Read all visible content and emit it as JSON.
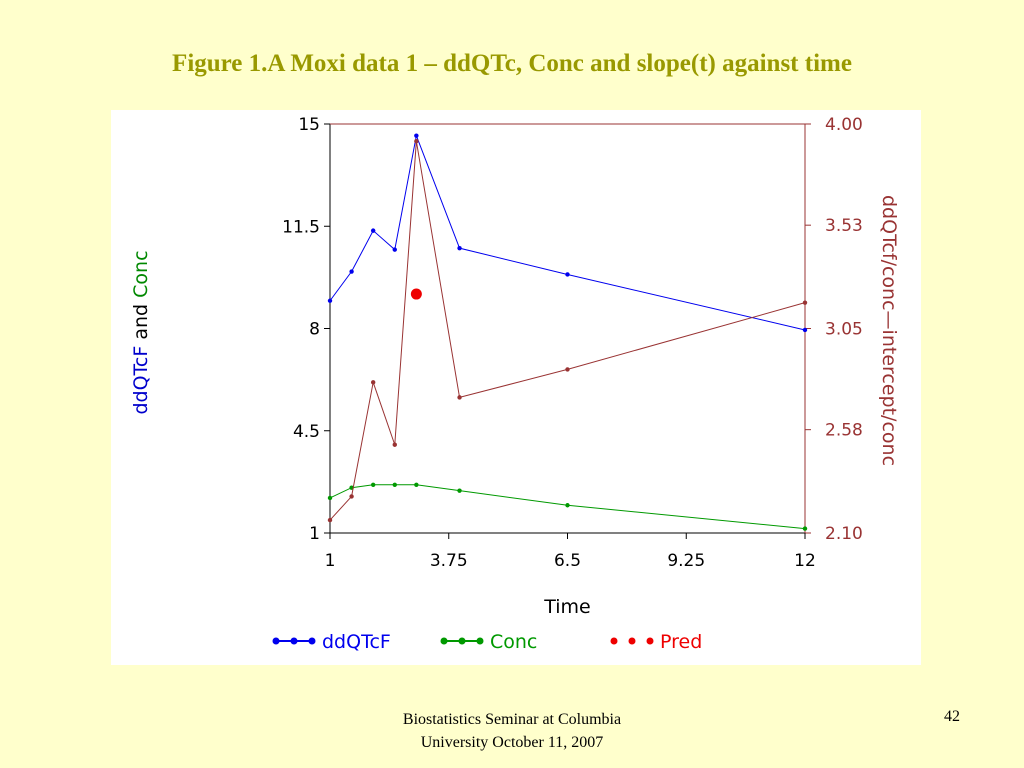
{
  "slide": {
    "title": "Figure 1.A Moxi data 1 – ddQTc, Conc and slope(t) against time",
    "footer_line1": "Biostatistics Seminar at Columbia",
    "footer_line2": "University October 11, 2007",
    "page_number": "42"
  },
  "chart_data": {
    "type": "line",
    "xlabel": "Time",
    "x_ticks": [
      "1",
      "3.75",
      "6.5",
      "9.25",
      "12"
    ],
    "xlim": [
      1,
      12
    ],
    "left_axis": {
      "label_parts": [
        {
          "text": "ddQTcF",
          "color": "#0000cc"
        },
        {
          "text": " and ",
          "color": "#000000"
        },
        {
          "text": "Conc",
          "color": "#008800"
        }
      ],
      "ticks": [
        "1",
        "4.5",
        "8",
        "11.5",
        "15"
      ],
      "ylim": [
        1,
        15
      ]
    },
    "right_axis": {
      "label": "ddQTcf/conc—intercept/conc",
      "ticks": [
        "2.10",
        "2.58",
        "3.05",
        "3.53",
        "4.00"
      ],
      "ylim": [
        2.1,
        4.0
      ]
    },
    "series": [
      {
        "name": "ddQTcF",
        "axis": "left",
        "color": "#0000ee",
        "x": [
          1,
          1.5,
          2,
          2.5,
          3,
          4,
          6.5,
          12
        ],
        "y": [
          8.95,
          9.95,
          11.35,
          10.7,
          14.6,
          10.75,
          9.85,
          7.95
        ]
      },
      {
        "name": "Conc",
        "axis": "left",
        "color": "#009900",
        "x": [
          1,
          1.5,
          2,
          2.5,
          3,
          4,
          6.5,
          12
        ],
        "y": [
          2.2,
          2.55,
          2.65,
          2.65,
          2.65,
          2.45,
          1.95,
          1.15
        ]
      },
      {
        "axis": "right",
        "color": "#993333",
        "x": [
          1,
          1.5,
          2,
          2.5,
          3,
          4,
          6.5,
          12
        ],
        "y": [
          2.16,
          2.27,
          2.8,
          2.51,
          3.92,
          2.73,
          2.86,
          3.17
        ]
      },
      {
        "name": "Pred",
        "axis": "right",
        "color": "#ee0000",
        "marker": "large-dot",
        "x": [
          3
        ],
        "y": [
          3.21
        ]
      }
    ],
    "legend": {
      "placement": "bottom",
      "entries": [
        {
          "name": "ddQTcF",
          "color": "#0000ee"
        },
        {
          "name": "Conc",
          "color": "#009900"
        },
        {
          "name": "Pred",
          "color": "#ee0000"
        }
      ]
    }
  }
}
